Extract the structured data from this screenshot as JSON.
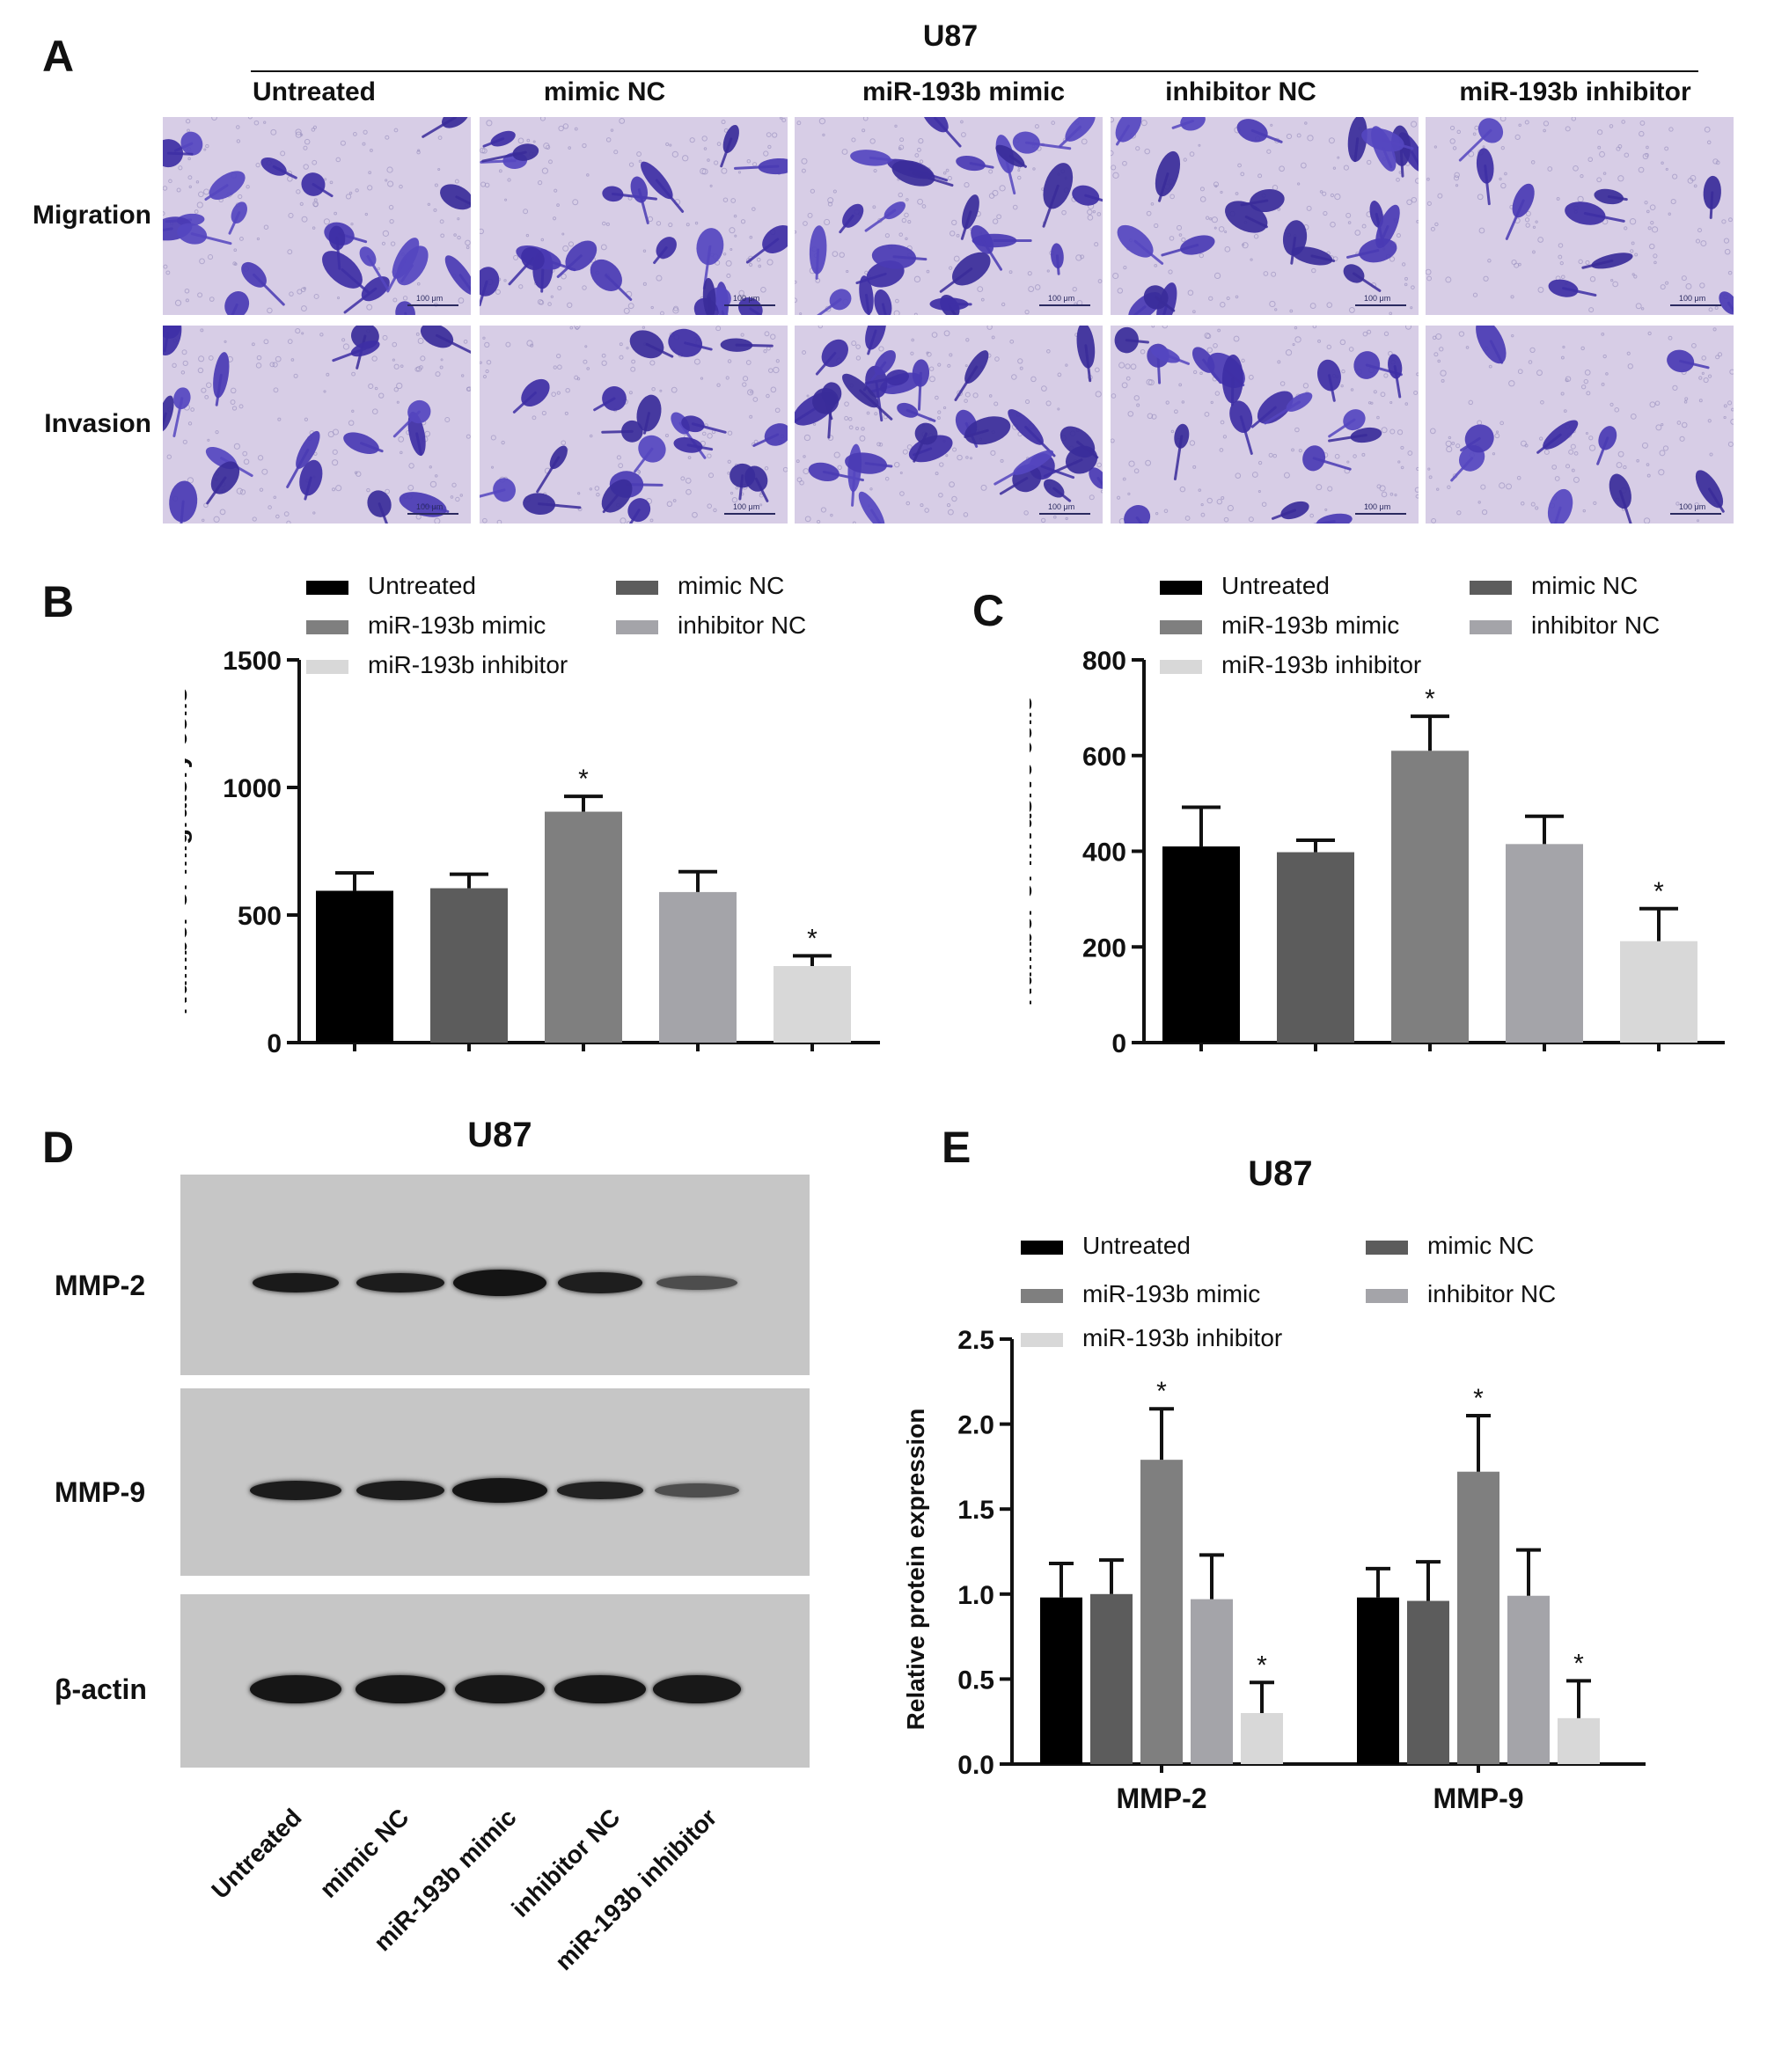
{
  "panel_letters": {
    "a": "A",
    "b": "B",
    "c": "C",
    "d": "D",
    "e": "E"
  },
  "panel_a": {
    "cell_line": "U87",
    "columns": [
      "Untreated",
      "mimic NC",
      "miR-193b mimic",
      "inhibitor NC",
      "miR-193b inhibitor"
    ],
    "rows": [
      "Migration",
      "Invasion"
    ],
    "scale_bar_text": "100 μm"
  },
  "legend": {
    "entries": [
      "Untreated",
      "mimic NC",
      "miR-193b mimic",
      "inhibitor NC",
      "miR-193b inhibitor"
    ],
    "colors": [
      "#000000",
      "#5c5c5c",
      "#7f7f7f",
      "#a4a4a9",
      "#d8d8d8"
    ]
  },
  "panel_d": {
    "cell_line": "U87",
    "proteins": [
      "MMP-2",
      "MMP-9",
      "β-actin"
    ],
    "lanes": [
      "Untreated",
      "mimic NC",
      "miR-193b mimic",
      "inhibitor NC",
      "miR-193b inhibitor"
    ]
  },
  "chart_data": [
    {
      "panel": "B",
      "type": "bar",
      "title": "",
      "xlabel": "",
      "ylabel": "Number of migratory cells",
      "ylim": [
        0,
        1500
      ],
      "yticks": [
        0,
        500,
        1000,
        1500
      ],
      "categories": [
        "Untreated",
        "mimic NC",
        "miR-193b mimic",
        "inhibitor NC",
        "miR-193b inhibitor"
      ],
      "values": [
        595,
        605,
        905,
        590,
        300
      ],
      "errors": [
        70,
        55,
        60,
        80,
        40
      ],
      "significance": [
        "",
        "",
        "*",
        "",
        "*"
      ],
      "colors": [
        "#000000",
        "#5c5c5c",
        "#7f7f7f",
        "#a4a4a9",
        "#d8d8d8"
      ]
    },
    {
      "panel": "C",
      "type": "bar",
      "title": "",
      "xlabel": "",
      "ylabel": "Number of invasive cells",
      "ylim": [
        0,
        800
      ],
      "yticks": [
        0,
        200,
        400,
        600,
        800
      ],
      "categories": [
        "Untreated",
        "mimic NC",
        "miR-193b mimic",
        "inhibitor NC",
        "miR-193b inhibitor"
      ],
      "values": [
        410,
        398,
        610,
        415,
        212
      ],
      "errors": [
        82,
        25,
        72,
        58,
        68
      ],
      "significance": [
        "",
        "",
        "*",
        "",
        "*"
      ],
      "colors": [
        "#000000",
        "#5c5c5c",
        "#7f7f7f",
        "#a4a4a9",
        "#d8d8d8"
      ]
    },
    {
      "panel": "E",
      "type": "bar",
      "title": "U87",
      "xlabel": "",
      "ylabel": "Relative protein expression",
      "ylim": [
        0,
        2.5
      ],
      "yticks": [
        "0.0",
        "0.5",
        "1.0",
        "1.5",
        "2.0",
        "2.5"
      ],
      "categories": [
        "MMP-2",
        "MMP-9"
      ],
      "series": [
        {
          "name": "Untreated",
          "values": [
            0.98,
            0.98
          ],
          "errors": [
            0.2,
            0.17
          ],
          "significance": [
            "",
            ""
          ],
          "color": "#000000"
        },
        {
          "name": "mimic NC",
          "values": [
            1.0,
            0.96
          ],
          "errors": [
            0.2,
            0.23
          ],
          "significance": [
            "",
            ""
          ],
          "color": "#5c5c5c"
        },
        {
          "name": "miR-193b mimic",
          "values": [
            1.79,
            1.72
          ],
          "errors": [
            0.3,
            0.33
          ],
          "significance": [
            "*",
            "*"
          ],
          "color": "#7f7f7f"
        },
        {
          "name": "inhibitor NC",
          "values": [
            0.97,
            0.99
          ],
          "errors": [
            0.26,
            0.27
          ],
          "significance": [
            "",
            ""
          ],
          "color": "#a4a4a9"
        },
        {
          "name": "miR-193b inhibitor",
          "values": [
            0.3,
            0.27
          ],
          "errors": [
            0.18,
            0.22
          ],
          "significance": [
            "*",
            "*"
          ],
          "color": "#d8d8d8"
        }
      ]
    }
  ]
}
